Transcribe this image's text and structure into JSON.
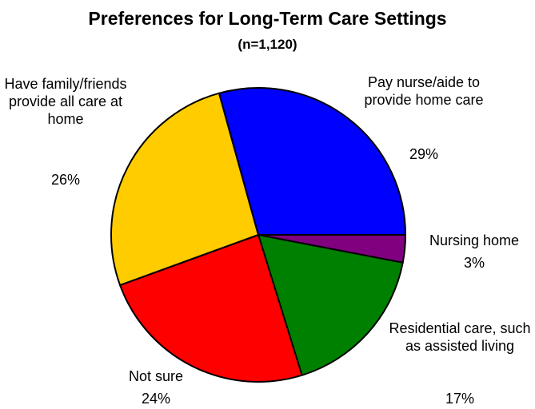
{
  "chart_data": {
    "type": "pie",
    "title": "Preferences for Long-Term Care Settings",
    "subtitle": "(n=1,120)",
    "categories": [
      "Nursing home",
      "Residential care, such as assisted living",
      "Not sure",
      "Have family/friends provide all care at home",
      "Pay nurse/aide to provide home care"
    ],
    "values": [
      3,
      17,
      24,
      26,
      29
    ],
    "value_labels": [
      "3%",
      "17%",
      "24%",
      "26%",
      "29%"
    ],
    "colors": [
      "#800080",
      "#008000",
      "#ff0000",
      "#ffcc00",
      "#0000ff"
    ]
  }
}
